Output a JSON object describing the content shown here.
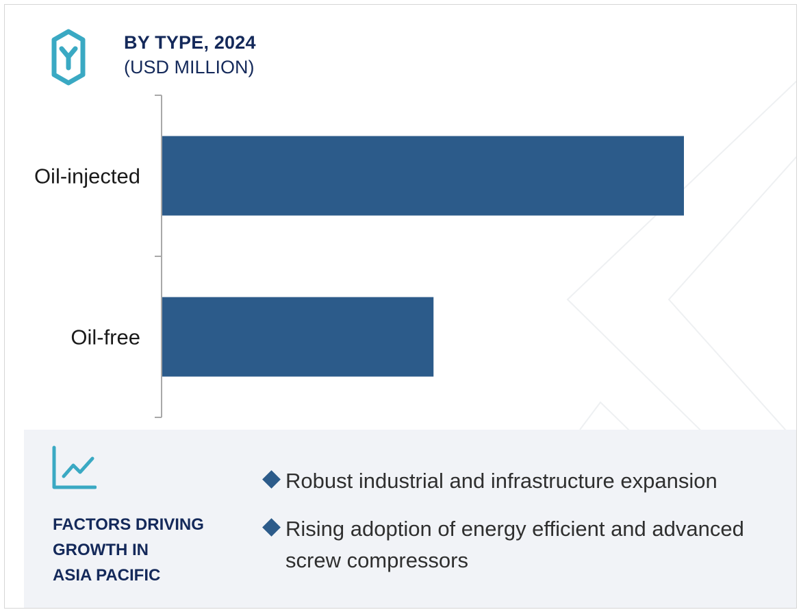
{
  "header": {
    "title": "BY TYPE, 2024",
    "subtitle": "(USD MILLION)",
    "logo_icon": "hexagon-y-logo-icon"
  },
  "colors": {
    "bar": "#2c5b8a",
    "title": "#14295a",
    "accent": "#3aa9c3",
    "panel": "#f1f3f7"
  },
  "chart_data": {
    "type": "bar",
    "orientation": "horizontal",
    "categories": [
      "Oil-injected",
      "Oil-free"
    ],
    "values": [
      100,
      52
    ],
    "value_axis_shown": false,
    "grid": false,
    "legend": "none",
    "title": "BY TYPE, 2024",
    "xlabel": "",
    "ylabel": ""
  },
  "factors": {
    "icon": "trend-chart-icon",
    "title_lines": [
      "FACTORS DRIVING",
      "GROWTH IN",
      "ASIA PACIFIC"
    ],
    "bullets": [
      "Robust industrial and infrastructure expansion",
      "Rising adoption of energy efficient and advanced screw compressors"
    ]
  }
}
